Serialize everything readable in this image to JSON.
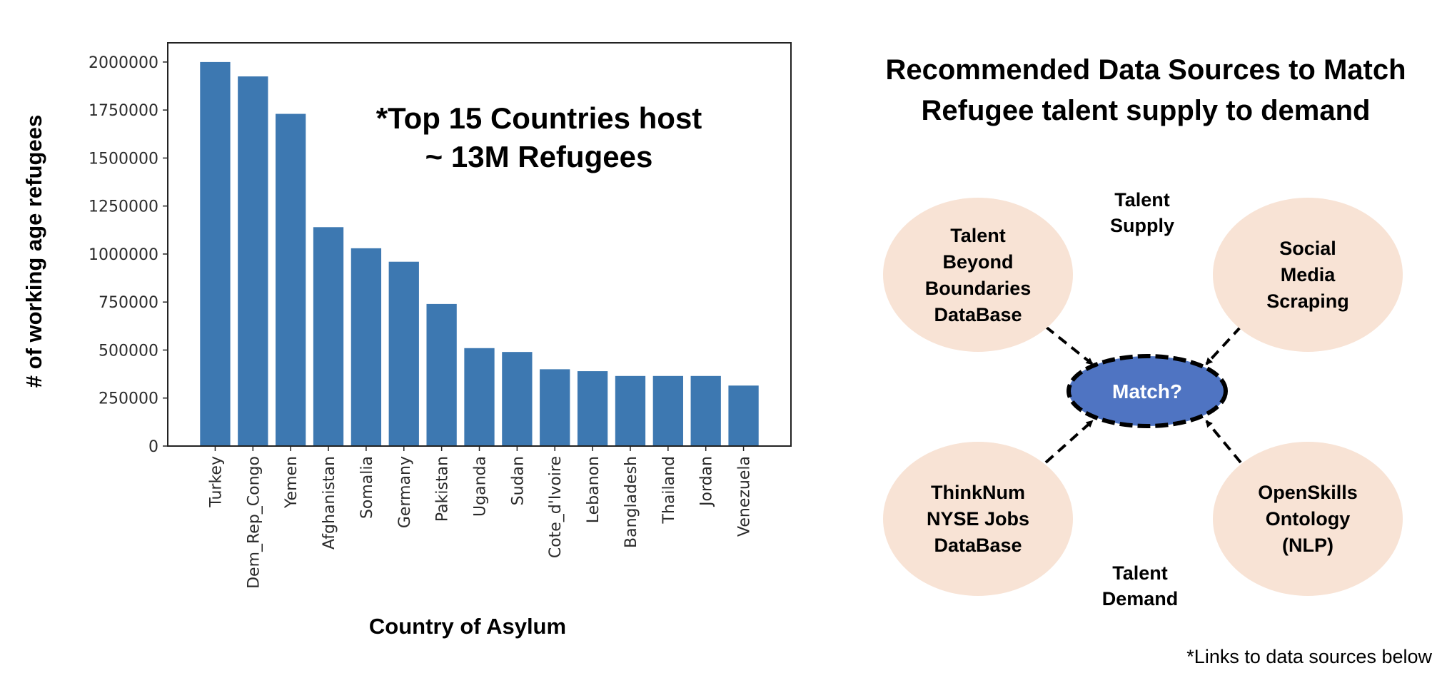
{
  "chart_data": {
    "type": "bar",
    "categories": [
      "Turkey",
      "Dem_Rep_Congo",
      "Yemen",
      "Afghanistan",
      "Somalia",
      "Germany",
      "Pakistan",
      "Uganda",
      "Sudan",
      "Cote_d'Ivoire",
      "Lebanon",
      "Bangladesh",
      "Thailand",
      "Jordan",
      "Venezuela"
    ],
    "values": [
      2000000,
      1925000,
      1730000,
      1140000,
      1030000,
      960000,
      740000,
      510000,
      490000,
      400000,
      390000,
      365000,
      365000,
      365000,
      315000
    ],
    "xlabel": "Country of Asylum",
    "ylabel": "# of working age refugees",
    "ylim": [
      0,
      2100000
    ],
    "yticks": [
      0,
      250000,
      500000,
      750000,
      1000000,
      1250000,
      1500000,
      1750000,
      2000000
    ],
    "color": "#3d78b1",
    "annotation": [
      "*Top 15 Countries host",
      "~ 13M Refugees"
    ]
  },
  "diagram": {
    "title_lines": [
      "Recommended Data Sources to Match",
      "Refugee talent supply to demand"
    ],
    "nodes": [
      {
        "lines": [
          "Talent",
          "Beyond",
          "Boundaries",
          "DataBase"
        ]
      },
      {
        "lines": [
          "Social",
          "Media",
          "Scraping"
        ]
      },
      {
        "lines": [
          "ThinkNum",
          "NYSE Jobs",
          "DataBase"
        ]
      },
      {
        "lines": [
          "OpenSkills",
          "Ontology",
          "(NLP)"
        ]
      }
    ],
    "center": "Match?",
    "supply_lines": [
      "Talent",
      "Supply"
    ],
    "demand_lines": [
      "Talent",
      "Demand"
    ],
    "node_fill": "#f8e3d5",
    "center_fill": "#4f74c2"
  },
  "footnote": "*Links to data sources below"
}
